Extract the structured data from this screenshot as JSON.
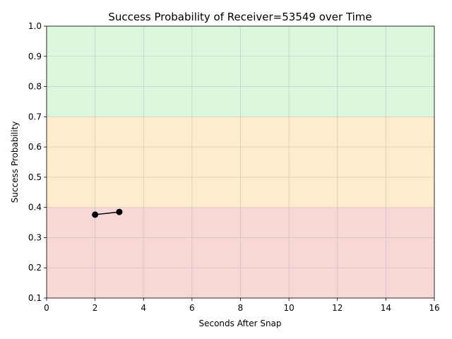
{
  "chart_data": {
    "type": "line",
    "title": "Success Probability of Receiver=53549 over Time",
    "xlabel": "Seconds After Snap",
    "ylabel": "Success Probability",
    "xlim": [
      0,
      16
    ],
    "ylim": [
      0.1,
      1.0
    ],
    "xticks": [
      0,
      2,
      4,
      6,
      8,
      10,
      12,
      14,
      16
    ],
    "yticks": [
      0.1,
      0.2,
      0.3,
      0.4,
      0.5,
      0.6,
      0.7,
      0.8,
      0.9,
      1.0
    ],
    "xtick_labels": [
      "0",
      "2",
      "4",
      "6",
      "8",
      "10",
      "12",
      "14",
      "16"
    ],
    "ytick_labels": [
      "0.1",
      "0.2",
      "0.3",
      "0.4",
      "0.5",
      "0.6",
      "0.7",
      "0.8",
      "0.9",
      "1.0"
    ],
    "grid": true,
    "bands": [
      {
        "from": 0.1,
        "to": 0.4,
        "color": "#f8d7d7"
      },
      {
        "from": 0.4,
        "to": 0.7,
        "color": "#ffeccd"
      },
      {
        "from": 0.7,
        "to": 1.0,
        "color": "#dcf7dd"
      }
    ],
    "series": [
      {
        "x": [
          2,
          3
        ],
        "y": [
          0.376,
          0.385
        ],
        "color": "#000000",
        "marker": "circle"
      }
    ]
  }
}
